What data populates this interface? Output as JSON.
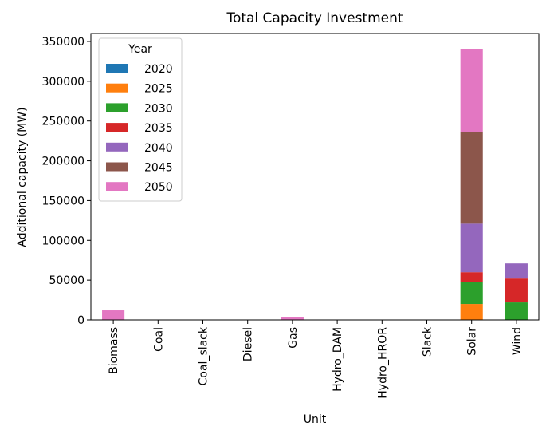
{
  "chart_data": {
    "type": "bar",
    "stacked": true,
    "title": "Total Capacity Investment",
    "xlabel": "Unit",
    "ylabel": "Additional capacity (MW)",
    "ylim": [
      0,
      360000
    ],
    "yticks": [
      0,
      50000,
      100000,
      150000,
      200000,
      250000,
      300000,
      350000
    ],
    "ytick_labels": [
      "0",
      "50000",
      "100000",
      "150000",
      "200000",
      "250000",
      "300000",
      "350000"
    ],
    "grid": false,
    "legend": {
      "title": "Year",
      "placement": "top-left"
    },
    "categories": [
      "Biomass",
      "Coal",
      "Coal_slack",
      "Diesel",
      "Gas",
      "Hydro_DAM",
      "Hydro_HROR",
      "Slack",
      "Solar",
      "Wind"
    ],
    "series": [
      {
        "name": "2020",
        "color": "#1f77b4",
        "values": [
          0,
          0,
          0,
          0,
          0,
          0,
          0,
          0,
          0,
          0
        ]
      },
      {
        "name": "2025",
        "color": "#ff7f0e",
        "values": [
          0,
          0,
          0,
          0,
          0,
          0,
          0,
          0,
          20000,
          0
        ]
      },
      {
        "name": "2030",
        "color": "#2ca02c",
        "values": [
          0,
          0,
          0,
          0,
          0,
          0,
          0,
          0,
          28000,
          22000
        ]
      },
      {
        "name": "2035",
        "color": "#d62728",
        "values": [
          0,
          0,
          0,
          0,
          0,
          0,
          0,
          0,
          12000,
          30000
        ]
      },
      {
        "name": "2040",
        "color": "#9467bd",
        "values": [
          0,
          0,
          0,
          0,
          0,
          0,
          0,
          0,
          61000,
          19000
        ]
      },
      {
        "name": "2045",
        "color": "#8c564b",
        "values": [
          0,
          0,
          0,
          0,
          0,
          0,
          0,
          0,
          115000,
          0
        ]
      },
      {
        "name": "2050",
        "color": "#e377c2",
        "values": [
          12000,
          0,
          0,
          0,
          4000,
          0,
          0,
          0,
          104000,
          0
        ]
      }
    ]
  }
}
